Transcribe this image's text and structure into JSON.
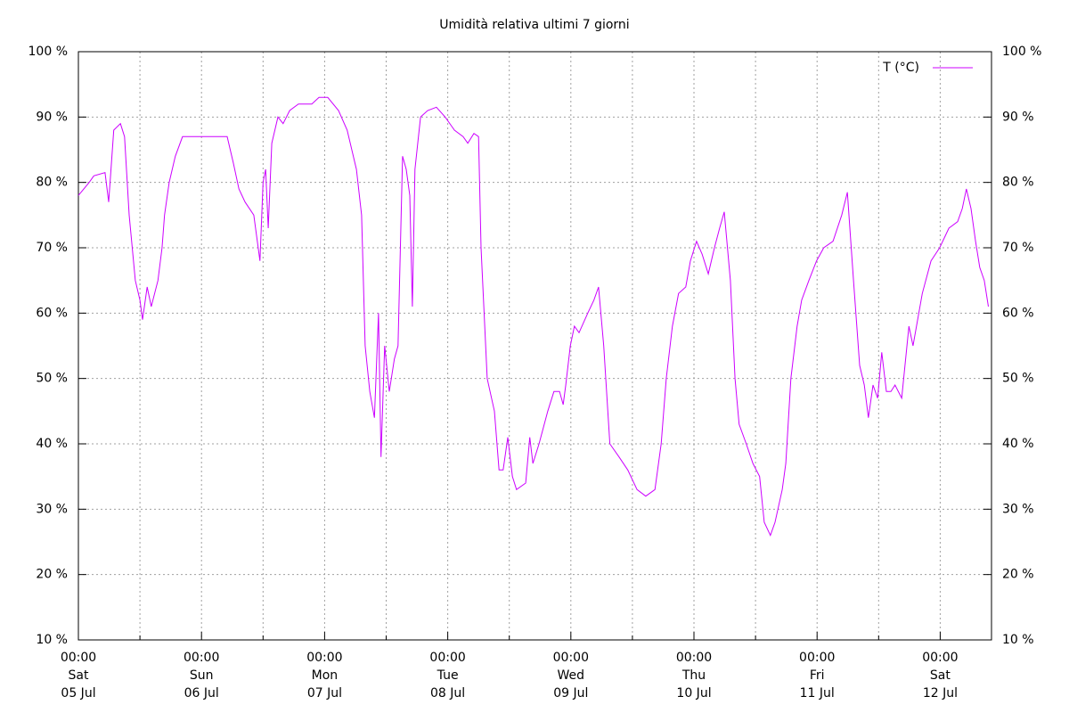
{
  "chart_data": {
    "type": "line",
    "title": "Umidità relativa ultimi 7 giorni",
    "x": [
      0,
      2.1,
      3.0,
      5.2,
      5.9,
      6.9,
      8.2,
      9.0,
      9.9,
      11.1,
      12.0,
      12.5,
      13.4,
      14.2,
      15.5,
      16.3,
      16.8,
      17.7,
      18.9,
      20.3,
      22.0,
      24.6,
      29.0,
      30.2,
      31.3,
      32.5,
      34.2,
      35.4,
      36.0,
      36.5,
      37.0,
      37.7,
      38.9,
      39.9,
      41.2,
      42.9,
      45.5,
      46.9,
      48.6,
      50.7,
      52.4,
      54.2,
      55.2,
      55.9,
      56.8,
      57.7,
      58.5,
      59.0,
      59.7,
      60.6,
      61.6,
      62.3,
      63.2,
      63.9,
      64.6,
      65.1,
      65.6,
      66.7,
      68.1,
      69.8,
      71.5,
      73.3,
      75.0,
      75.9,
      77.1,
      78.0,
      78.5,
      79.7,
      81.1,
      82.0,
      82.8,
      83.7,
      84.6,
      85.4,
      87.2,
      88.0,
      88.6,
      89.8,
      91.5,
      92.7,
      93.8,
      94.5,
      95.0,
      95.9,
      96.7,
      97.6,
      99.3,
      100.5,
      101.4,
      102.4,
      103.6,
      105.4,
      107.1,
      108.9,
      110.6,
      112.4,
      113.6,
      114.6,
      115.8,
      117.0,
      118.4,
      119.3,
      120.5,
      121.6,
      122.8,
      124.0,
      125.0,
      125.9,
      127.1,
      128.0,
      128.8,
      130.2,
      131.5,
      132.8,
      133.7,
      134.9,
      135.8,
      137.2,
      137.9,
      138.9,
      140.1,
      141.0,
      142.4,
      143.9,
      145.3,
      147.1,
      148.8,
      149.9,
      151.1,
      152.3,
      153.2,
      154.0,
      154.9,
      155.8,
      156.6,
      157.5,
      158.4,
      159.2,
      160.5,
      161.9,
      162.7,
      164.5,
      166.2,
      167.9,
      169.7,
      171.4,
      172.3,
      173.1,
      174.0,
      174.9,
      175.7,
      176.6,
      177.4
    ],
    "series": [
      {
        "name": "T (°C)",
        "color": "#cc00ff",
        "values": [
          78,
          80,
          81,
          81.5,
          77,
          88,
          89,
          87,
          75,
          65,
          62,
          59,
          64,
          61,
          65,
          70,
          75,
          80,
          84,
          87,
          87,
          87,
          87,
          83,
          79,
          77,
          75,
          68,
          80,
          82,
          73,
          86,
          90,
          89,
          91,
          92,
          92,
          93,
          93,
          91,
          88,
          82,
          75,
          55,
          48,
          44,
          60,
          38,
          55,
          48,
          53,
          55,
          84,
          82,
          78,
          61,
          82,
          90,
          91,
          91.5,
          90,
          88,
          87,
          86,
          87.5,
          87,
          70,
          50,
          45,
          36,
          36,
          41,
          35,
          33,
          34,
          41,
          37,
          40,
          45,
          48,
          48,
          46,
          49,
          55,
          58,
          57,
          60,
          62,
          64,
          55,
          40,
          38,
          36,
          33,
          32,
          33,
          40,
          50,
          58,
          63,
          64,
          68,
          71,
          69,
          66,
          70,
          73,
          75.5,
          65,
          50,
          43,
          40,
          37,
          35,
          28,
          26,
          28,
          33,
          37,
          50,
          58,
          62,
          65,
          68,
          70,
          71,
          75,
          78.5,
          65,
          52,
          49,
          44,
          49,
          47,
          54,
          48,
          48,
          49,
          47,
          58,
          55,
          63,
          68,
          70,
          73,
          74,
          76,
          79,
          76,
          71,
          67,
          65,
          61
        ]
      }
    ],
    "xlim": [
      0,
      178
    ],
    "xticks": [
      {
        "value": 0,
        "label": "00:00\nSat\n05 Jul"
      },
      {
        "value": 24,
        "label": "00:00\nSun\n06 Jul"
      },
      {
        "value": 48,
        "label": "00:00\nMon\n07 Jul"
      },
      {
        "value": 72,
        "label": "00:00\nTue\n08 Jul"
      },
      {
        "value": 96,
        "label": "00:00\nWed\n09 Jul"
      },
      {
        "value": 120,
        "label": "00:00\nThu\n10 Jul"
      },
      {
        "value": 144,
        "label": "00:00\nFri\n11 Jul"
      },
      {
        "value": 168,
        "label": "00:00\nSat\n12 Jul"
      }
    ],
    "xgrid": [
      12,
      36,
      60,
      84,
      108,
      132,
      156
    ],
    "ylim": [
      10,
      100
    ],
    "yticks": [
      {
        "value": 10,
        "label": "10 %"
      },
      {
        "value": 20,
        "label": "20 %"
      },
      {
        "value": 30,
        "label": "30 %"
      },
      {
        "value": 40,
        "label": "40 %"
      },
      {
        "value": 50,
        "label": "50 %"
      },
      {
        "value": 60,
        "label": "60 %"
      },
      {
        "value": 70,
        "label": "70 %"
      },
      {
        "value": 80,
        "label": "80 %"
      },
      {
        "value": 90,
        "label": "90 %"
      },
      {
        "value": 100,
        "label": "100 %"
      }
    ],
    "y2lim": [
      10,
      100
    ],
    "y2ticks": [
      {
        "value": 10,
        "label": "10 %"
      },
      {
        "value": 20,
        "label": "20 %"
      },
      {
        "value": 30,
        "label": "30 %"
      },
      {
        "value": 40,
        "label": "40 %"
      },
      {
        "value": 50,
        "label": "50 %"
      },
      {
        "value": 60,
        "label": "60 %"
      },
      {
        "value": 70,
        "label": "70 %"
      },
      {
        "value": 80,
        "label": "80 %"
      },
      {
        "value": 90,
        "label": "90 %"
      },
      {
        "value": 100,
        "label": "100 %"
      }
    ],
    "grid": true,
    "legend": "top-right"
  }
}
